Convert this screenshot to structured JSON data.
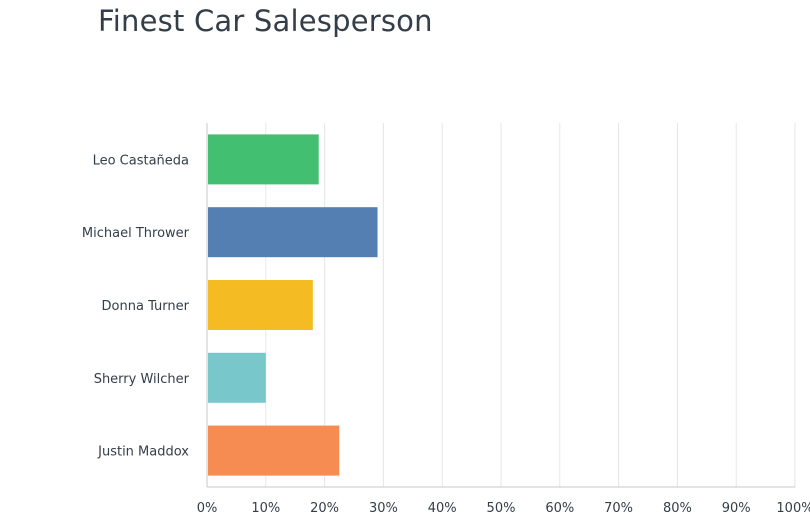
{
  "chart_data": {
    "type": "bar",
    "orientation": "horizontal",
    "title": "Finest Car Salesperson",
    "categories": [
      "Leo Castañeda",
      "Michael Thrower",
      "Donna Turner",
      "Sherry Wilcher",
      "Justin Maddox"
    ],
    "values": [
      19,
      29,
      18,
      10,
      22.5
    ],
    "colors": [
      "#43bf72",
      "#537fb3",
      "#f5bb22",
      "#78c8cb",
      "#f68c51"
    ],
    "xticks": [
      "0%",
      "10%",
      "20%",
      "30%",
      "40%",
      "50%",
      "60%",
      "70%",
      "80%",
      "90%",
      "100%"
    ],
    "xlim": [
      0,
      100
    ],
    "grid": true,
    "legend": "none"
  }
}
